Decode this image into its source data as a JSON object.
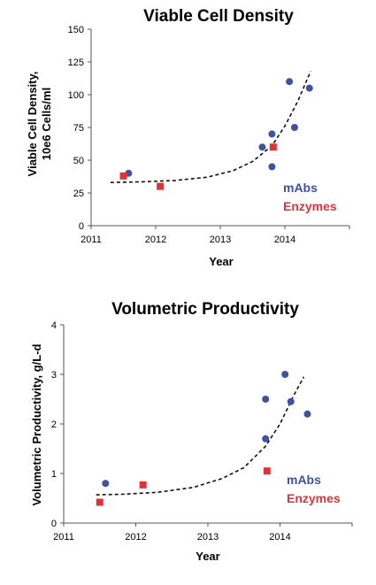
{
  "colors": {
    "mabs": "#3f51a3",
    "enzymes": "#e03339",
    "trend": "#111111",
    "axis": "#555555"
  },
  "chart_data": [
    {
      "type": "scatter",
      "title": "Viable Cell Density",
      "xlabel": "Year",
      "ylabel": "Viable Cell Density,",
      "ylabel2": "10e6 Cells/ml",
      "xlim": [
        2011,
        2015
      ],
      "ylim": [
        0,
        150
      ],
      "xticks": [
        2011,
        2012,
        2013,
        2014
      ],
      "yticks": [
        0,
        25,
        50,
        75,
        100,
        125,
        150
      ],
      "series": [
        {
          "name": "mAbs",
          "marker": "circle",
          "x": [
            2011.58,
            2013.65,
            2013.8,
            2013.8,
            2014.07,
            2014.15,
            2014.38
          ],
          "y": [
            40,
            60,
            70,
            45,
            110,
            75,
            105
          ]
        },
        {
          "name": "Enzymes",
          "marker": "square",
          "x": [
            2011.5,
            2012.07,
            2013.82
          ],
          "y": [
            38,
            30,
            60
          ]
        }
      ],
      "trend": {
        "x": [
          2011.3,
          2011.8,
          2012.3,
          2012.8,
          2013.2,
          2013.5,
          2013.8,
          2014.0,
          2014.2,
          2014.4
        ],
        "y": [
          33,
          33.5,
          34.5,
          37,
          42,
          49,
          61,
          76,
          95,
          118
        ]
      }
    },
    {
      "type": "scatter",
      "title": "Volumetric Productivity",
      "xlabel": "Year",
      "ylabel": "Volumetric Productivity, g/L-d",
      "xlim": [
        2011,
        2015
      ],
      "ylim": [
        0,
        4
      ],
      "xticks": [
        2011,
        2012,
        2013,
        2014
      ],
      "yticks": [
        0,
        1,
        2,
        3,
        4
      ],
      "series": [
        {
          "name": "mAbs",
          "marker": "circle",
          "x": [
            2011.58,
            2013.8,
            2013.8,
            2014.07,
            2014.15,
            2014.38
          ],
          "y": [
            0.8,
            2.5,
            1.7,
            3.0,
            2.45,
            2.2
          ]
        },
        {
          "name": "Enzymes",
          "marker": "square",
          "x": [
            2011.5,
            2012.1,
            2013.82
          ],
          "y": [
            0.42,
            0.77,
            1.05
          ]
        }
      ],
      "trend": {
        "x": [
          2011.45,
          2011.8,
          2012.3,
          2012.8,
          2013.2,
          2013.5,
          2013.8,
          2014.0,
          2014.2,
          2014.33
        ],
        "y": [
          0.57,
          0.58,
          0.62,
          0.72,
          0.9,
          1.12,
          1.55,
          2.0,
          2.6,
          2.95
        ]
      }
    }
  ]
}
